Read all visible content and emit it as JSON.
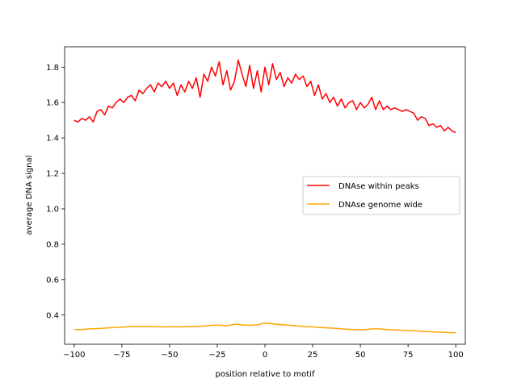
{
  "chart_data": {
    "type": "line",
    "title": "",
    "xlabel": "position relative to motif",
    "ylabel": "average DNA signal",
    "xlim": [
      -105,
      105
    ],
    "ylim": [
      0.235,
      1.915
    ],
    "xticks": [
      -100,
      -75,
      -50,
      -25,
      0,
      25,
      50,
      75,
      100
    ],
    "xtick_labels": [
      "−100",
      "−75",
      "−50",
      "−25",
      "0",
      "25",
      "50",
      "75",
      "100"
    ],
    "yticks": [
      0.4,
      0.6,
      0.8,
      1.0,
      1.2,
      1.4,
      1.6,
      1.8
    ],
    "ytick_labels": [
      "0.4",
      "0.6",
      "0.8",
      "1.0",
      "1.2",
      "1.4",
      "1.6",
      "1.8"
    ],
    "grid": false,
    "legend_position": "center-right",
    "series": [
      {
        "name": "DNAse within peaks",
        "color": "#ff0000",
        "x": [
          -100,
          -98,
          -96,
          -94,
          -92,
          -90,
          -88,
          -86,
          -84,
          -82,
          -80,
          -78,
          -76,
          -74,
          -72,
          -70,
          -68,
          -66,
          -64,
          -62,
          -60,
          -58,
          -56,
          -54,
          -52,
          -50,
          -48,
          -46,
          -44,
          -42,
          -40,
          -38,
          -36,
          -34,
          -32,
          -30,
          -28,
          -26,
          -24,
          -22,
          -20,
          -18,
          -16,
          -14,
          -12,
          -10,
          -8,
          -6,
          -4,
          -2,
          0,
          2,
          4,
          6,
          8,
          10,
          12,
          14,
          16,
          18,
          20,
          22,
          24,
          26,
          28,
          30,
          32,
          34,
          36,
          38,
          40,
          42,
          44,
          46,
          48,
          50,
          52,
          54,
          56,
          58,
          60,
          62,
          64,
          66,
          68,
          70,
          72,
          74,
          76,
          78,
          80,
          82,
          84,
          86,
          88,
          90,
          92,
          94,
          96,
          98,
          100
        ],
        "values": [
          1.5,
          1.49,
          1.51,
          1.5,
          1.52,
          1.49,
          1.55,
          1.56,
          1.53,
          1.58,
          1.57,
          1.6,
          1.62,
          1.6,
          1.63,
          1.64,
          1.61,
          1.67,
          1.65,
          1.68,
          1.7,
          1.66,
          1.71,
          1.69,
          1.72,
          1.68,
          1.71,
          1.64,
          1.7,
          1.66,
          1.72,
          1.68,
          1.74,
          1.63,
          1.76,
          1.72,
          1.8,
          1.75,
          1.83,
          1.7,
          1.78,
          1.67,
          1.72,
          1.84,
          1.76,
          1.69,
          1.81,
          1.68,
          1.78,
          1.66,
          1.8,
          1.7,
          1.82,
          1.73,
          1.77,
          1.69,
          1.74,
          1.71,
          1.76,
          1.73,
          1.75,
          1.69,
          1.72,
          1.64,
          1.7,
          1.62,
          1.65,
          1.6,
          1.63,
          1.58,
          1.62,
          1.57,
          1.6,
          1.61,
          1.56,
          1.6,
          1.57,
          1.59,
          1.63,
          1.56,
          1.61,
          1.56,
          1.58,
          1.56,
          1.57,
          1.56,
          1.55,
          1.56,
          1.55,
          1.54,
          1.5,
          1.52,
          1.51,
          1.47,
          1.48,
          1.46,
          1.47,
          1.44,
          1.46,
          1.44,
          1.43
        ]
      },
      {
        "name": "DNAse genome wide",
        "color": "#ffa500",
        "x": [
          -100,
          -96,
          -92,
          -88,
          -84,
          -80,
          -76,
          -72,
          -68,
          -64,
          -60,
          -56,
          -52,
          -48,
          -44,
          -40,
          -36,
          -32,
          -28,
          -24,
          -20,
          -16,
          -12,
          -8,
          -4,
          0,
          4,
          8,
          12,
          16,
          20,
          24,
          28,
          32,
          36,
          40,
          44,
          48,
          52,
          56,
          60,
          64,
          68,
          72,
          76,
          80,
          84,
          88,
          92,
          96,
          100
        ],
        "values": [
          0.318,
          0.318,
          0.322,
          0.324,
          0.326,
          0.329,
          0.331,
          0.334,
          0.336,
          0.335,
          0.336,
          0.334,
          0.333,
          0.335,
          0.333,
          0.336,
          0.335,
          0.338,
          0.342,
          0.343,
          0.34,
          0.348,
          0.345,
          0.342,
          0.345,
          0.355,
          0.35,
          0.346,
          0.343,
          0.34,
          0.336,
          0.334,
          0.33,
          0.328,
          0.326,
          0.322,
          0.319,
          0.318,
          0.317,
          0.322,
          0.322,
          0.318,
          0.316,
          0.314,
          0.312,
          0.31,
          0.307,
          0.305,
          0.303,
          0.301,
          0.3
        ]
      }
    ]
  }
}
